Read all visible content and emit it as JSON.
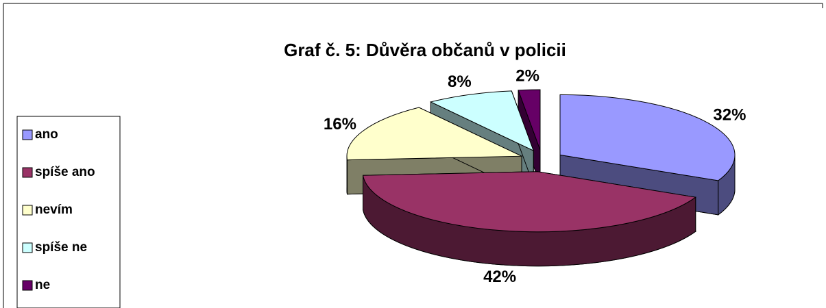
{
  "chart_data": {
    "type": "pie",
    "title": "Graf č. 5: Důvěra občanů v policii",
    "categories": [
      "ano",
      "spíše ano",
      "nevím",
      "spíše ne",
      "ne"
    ],
    "values": [
      32,
      42,
      16,
      8,
      2
    ],
    "value_labels": [
      "32%",
      "42%",
      "16%",
      "8%",
      "2%"
    ],
    "colors": [
      "#9999ff",
      "#993366",
      "#ffffcc",
      "#ccffff",
      "#660066"
    ],
    "legend": "left"
  }
}
